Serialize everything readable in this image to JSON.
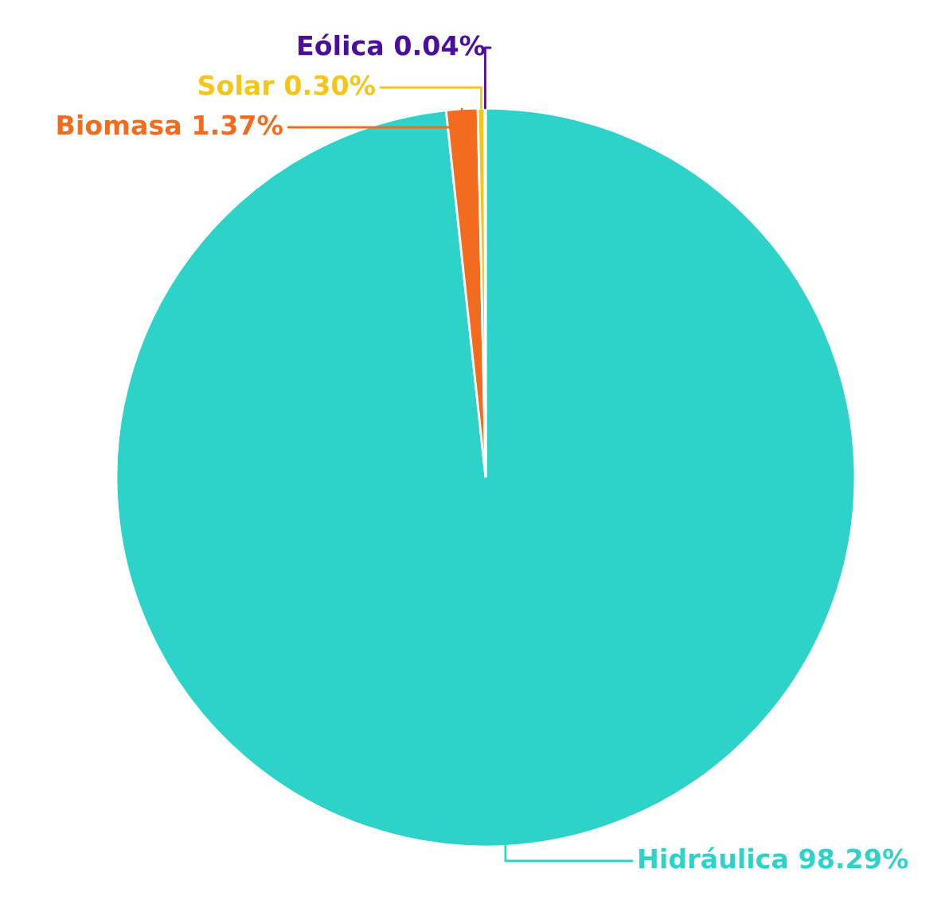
{
  "chart_data": {
    "type": "pie",
    "categories": [
      "Hidráulica",
      "Biomasa",
      "Solar",
      "Eólica"
    ],
    "values": [
      98.29,
      1.37,
      0.3,
      0.04
    ],
    "value_labels": [
      "98.29%",
      "1.37%",
      "0.30%",
      "0.04%"
    ],
    "colors": [
      "#2dd3c9",
      "#f26c1f",
      "#f5c518",
      "#4b0f9e"
    ]
  }
}
